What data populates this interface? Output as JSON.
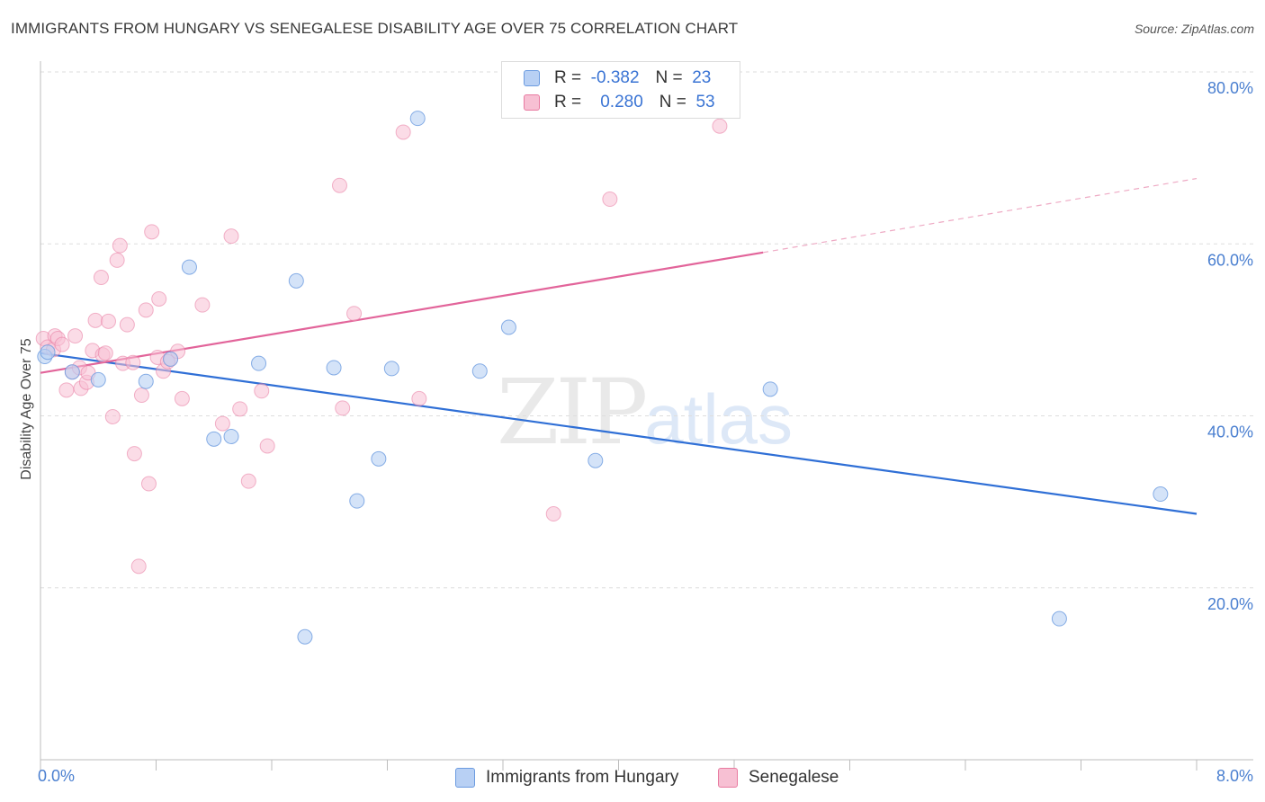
{
  "title": "IMMIGRANTS FROM HUNGARY VS SENEGALESE DISABILITY AGE OVER 75 CORRELATION CHART",
  "source": "Source: ZipAtlas.com",
  "watermark": {
    "zip": "ZIP",
    "atlas": "atlas"
  },
  "legend": {
    "r_label": "R =",
    "n_label": "N =",
    "rows": [
      {
        "r": "-0.382",
        "n": "23"
      },
      {
        "r": "0.280",
        "n": "53"
      }
    ]
  },
  "chart_data": {
    "type": "scatter",
    "title": "IMMIGRANTS FROM HUNGARY VS SENEGALESE DISABILITY AGE OVER 75 CORRELATION CHART",
    "xlabel": "",
    "ylabel": "Disability Age Over 75",
    "xlim": [
      0,
      8
    ],
    "ylim": [
      0,
      80
    ],
    "x_ticks": [
      "0.0%",
      "8.0%"
    ],
    "y_ticks": [
      "20.0%",
      "40.0%",
      "60.0%",
      "80.0%"
    ],
    "grid": true,
    "legend_position": "top-center and bottom",
    "series": [
      {
        "name": "Immigrants from Hungary",
        "color": "#6b9be0",
        "fill": "#b8d0f4",
        "r": -0.382,
        "n": 23,
        "trend": {
          "x": [
            0.0,
            8.0
          ],
          "y": [
            47.3,
            28.6
          ]
        },
        "points": [
          [
            0.03,
            46.9
          ],
          [
            0.05,
            47.4
          ],
          [
            0.22,
            45.1
          ],
          [
            0.4,
            44.2
          ],
          [
            0.73,
            44.0
          ],
          [
            0.9,
            46.6
          ],
          [
            1.03,
            57.3
          ],
          [
            1.2,
            37.3
          ],
          [
            1.32,
            37.6
          ],
          [
            1.51,
            46.1
          ],
          [
            1.77,
            55.7
          ],
          [
            1.83,
            14.3
          ],
          [
            2.03,
            45.6
          ],
          [
            2.19,
            30.1
          ],
          [
            2.34,
            35.0
          ],
          [
            2.43,
            45.5
          ],
          [
            2.61,
            74.6
          ],
          [
            3.04,
            45.2
          ],
          [
            3.24,
            50.3
          ],
          [
            3.84,
            34.8
          ],
          [
            5.05,
            43.1
          ],
          [
            7.05,
            16.4
          ],
          [
            7.75,
            30.9
          ]
        ]
      },
      {
        "name": "Senegalese",
        "color": "#e87aa0",
        "fill": "#f7c0d3",
        "r": 0.28,
        "n": 53,
        "trend": {
          "x": [
            0.0,
            5.0
          ],
          "y": [
            45.0,
            59.0
          ],
          "dashed_to": {
            "x": 8.0,
            "y": 67.6
          }
        },
        "points": [
          [
            0.02,
            49.0
          ],
          [
            0.05,
            48.0
          ],
          [
            0.09,
            47.7
          ],
          [
            0.1,
            49.3
          ],
          [
            0.12,
            49.0
          ],
          [
            0.15,
            48.3
          ],
          [
            0.18,
            43.0
          ],
          [
            0.22,
            45.1
          ],
          [
            0.24,
            49.3
          ],
          [
            0.27,
            45.6
          ],
          [
            0.28,
            43.2
          ],
          [
            0.32,
            43.9
          ],
          [
            0.33,
            45.0
          ],
          [
            0.36,
            47.6
          ],
          [
            0.38,
            51.1
          ],
          [
            0.42,
            56.1
          ],
          [
            0.43,
            47.1
          ],
          [
            0.45,
            47.3
          ],
          [
            0.47,
            51.0
          ],
          [
            0.5,
            39.9
          ],
          [
            0.53,
            58.1
          ],
          [
            0.55,
            59.8
          ],
          [
            0.57,
            46.1
          ],
          [
            0.6,
            50.6
          ],
          [
            0.64,
            46.2
          ],
          [
            0.65,
            35.6
          ],
          [
            0.68,
            22.5
          ],
          [
            0.7,
            42.4
          ],
          [
            0.73,
            52.3
          ],
          [
            0.75,
            32.1
          ],
          [
            0.77,
            61.4
          ],
          [
            0.81,
            46.8
          ],
          [
            0.82,
            53.6
          ],
          [
            0.85,
            45.2
          ],
          [
            0.9,
            46.6
          ],
          [
            0.95,
            47.5
          ],
          [
            0.98,
            42.0
          ],
          [
            1.12,
            52.9
          ],
          [
            1.26,
            39.1
          ],
          [
            1.32,
            60.9
          ],
          [
            1.38,
            40.8
          ],
          [
            1.44,
            32.4
          ],
          [
            1.53,
            42.9
          ],
          [
            1.57,
            36.5
          ],
          [
            2.07,
            66.8
          ],
          [
            2.09,
            40.9
          ],
          [
            2.17,
            51.9
          ],
          [
            2.51,
            73.0
          ],
          [
            2.62,
            42.0
          ],
          [
            3.55,
            28.6
          ],
          [
            3.94,
            65.2
          ],
          [
            4.7,
            73.7
          ],
          [
            0.88,
            46.3
          ]
        ]
      }
    ]
  }
}
